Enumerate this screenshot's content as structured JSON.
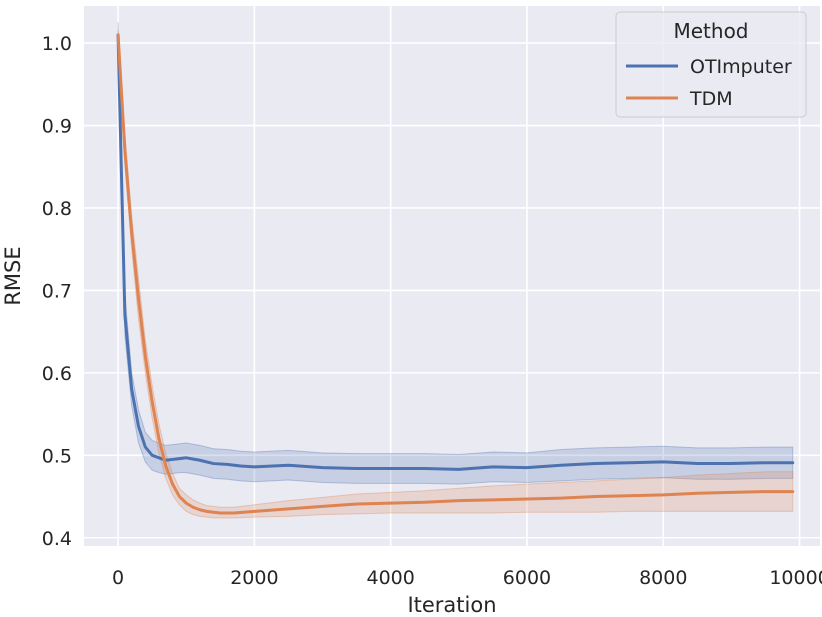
{
  "chart_data": {
    "type": "line",
    "xlabel": "Iteration",
    "ylabel": "RMSE",
    "xlim": [
      -500,
      10300
    ],
    "ylim": [
      0.39,
      1.045
    ],
    "xticks": [
      0,
      2000,
      4000,
      6000,
      8000,
      10000
    ],
    "yticks": [
      0.4,
      0.5,
      0.6,
      0.7,
      0.8,
      0.9,
      1.0
    ],
    "xtick_labels": [
      "0",
      "2000",
      "4000",
      "6000",
      "8000",
      "10000"
    ],
    "ytick_labels": [
      "0.4",
      "0.5",
      "0.6",
      "0.7",
      "0.8",
      "0.9",
      "1.0"
    ],
    "grid": true,
    "background": "#eaeaf2",
    "legend": {
      "title": "Method",
      "placement": "top-right",
      "entries": [
        "OTImputer",
        "TDM"
      ]
    },
    "series": [
      {
        "name": "OTImputer",
        "color": "#4c72b0",
        "x": [
          0,
          100,
          200,
          300,
          400,
          500,
          600,
          700,
          800,
          900,
          1000,
          1200,
          1400,
          1600,
          1800,
          2000,
          2500,
          3000,
          3500,
          4000,
          4500,
          5000,
          5500,
          6000,
          6500,
          7000,
          7500,
          8000,
          8500,
          9000,
          9500,
          9900
        ],
        "y": [
          1.01,
          0.67,
          0.58,
          0.535,
          0.51,
          0.5,
          0.497,
          0.494,
          0.495,
          0.496,
          0.497,
          0.494,
          0.49,
          0.489,
          0.487,
          0.486,
          0.488,
          0.485,
          0.484,
          0.484,
          0.484,
          0.483,
          0.486,
          0.485,
          0.488,
          0.49,
          0.491,
          0.492,
          0.49,
          0.49,
          0.491,
          0.491
        ],
        "lower": [
          0.995,
          0.645,
          0.56,
          0.515,
          0.492,
          0.482,
          0.479,
          0.477,
          0.478,
          0.479,
          0.479,
          0.476,
          0.472,
          0.471,
          0.469,
          0.468,
          0.47,
          0.467,
          0.466,
          0.466,
          0.466,
          0.465,
          0.468,
          0.467,
          0.469,
          0.471,
          0.472,
          0.473,
          0.471,
          0.471,
          0.472,
          0.472
        ],
        "upper": [
          1.025,
          0.695,
          0.6,
          0.555,
          0.528,
          0.518,
          0.515,
          0.512,
          0.513,
          0.514,
          0.515,
          0.512,
          0.508,
          0.507,
          0.505,
          0.504,
          0.506,
          0.503,
          0.502,
          0.502,
          0.502,
          0.501,
          0.504,
          0.503,
          0.507,
          0.509,
          0.51,
          0.511,
          0.509,
          0.509,
          0.51,
          0.51
        ]
      },
      {
        "name": "TDM",
        "color": "#dd8452",
        "x": [
          0,
          100,
          200,
          300,
          400,
          500,
          600,
          700,
          800,
          900,
          1000,
          1100,
          1200,
          1300,
          1400,
          1500,
          1700,
          2000,
          2500,
          3000,
          3500,
          4000,
          4500,
          5000,
          5500,
          6000,
          6500,
          7000,
          7500,
          8000,
          8500,
          9000,
          9500,
          9900
        ],
        "y": [
          1.01,
          0.87,
          0.77,
          0.69,
          0.62,
          0.565,
          0.52,
          0.487,
          0.465,
          0.45,
          0.442,
          0.437,
          0.434,
          0.432,
          0.431,
          0.43,
          0.43,
          0.432,
          0.435,
          0.438,
          0.441,
          0.442,
          0.443,
          0.445,
          0.446,
          0.447,
          0.448,
          0.45,
          0.451,
          0.452,
          0.454,
          0.455,
          0.456,
          0.456
        ],
        "lower": [
          1.005,
          0.85,
          0.75,
          0.665,
          0.6,
          0.545,
          0.502,
          0.472,
          0.452,
          0.44,
          0.432,
          0.428,
          0.426,
          0.425,
          0.424,
          0.424,
          0.424,
          0.425,
          0.426,
          0.428,
          0.429,
          0.43,
          0.43,
          0.43,
          0.43,
          0.431,
          0.431,
          0.431,
          0.432,
          0.432,
          0.432,
          0.432,
          0.432,
          0.432
        ],
        "upper": [
          1.015,
          0.89,
          0.79,
          0.715,
          0.64,
          0.585,
          0.538,
          0.502,
          0.478,
          0.46,
          0.452,
          0.446,
          0.442,
          0.439,
          0.438,
          0.437,
          0.437,
          0.44,
          0.445,
          0.449,
          0.453,
          0.455,
          0.457,
          0.46,
          0.463,
          0.465,
          0.467,
          0.469,
          0.471,
          0.473,
          0.476,
          0.478,
          0.48,
          0.48
        ]
      }
    ]
  }
}
